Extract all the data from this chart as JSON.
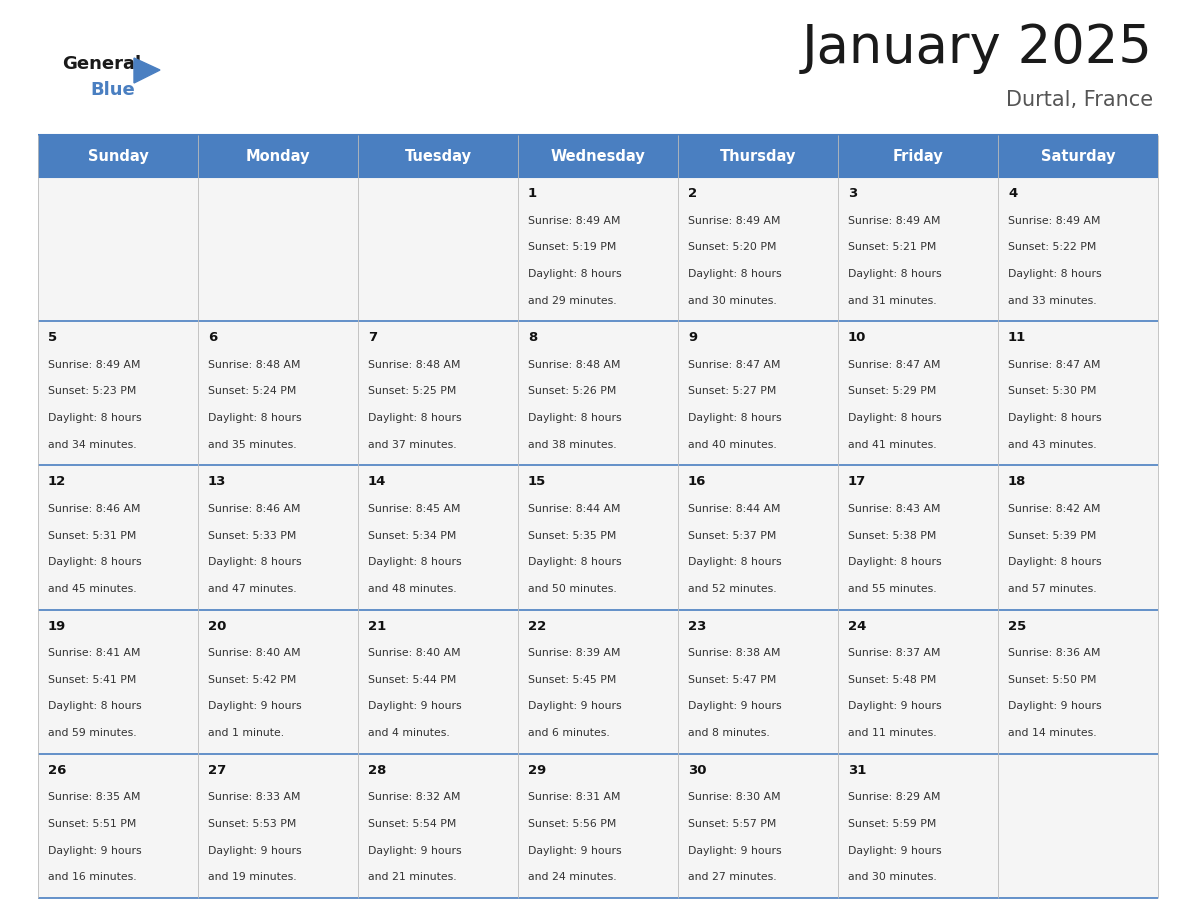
{
  "title": "January 2025",
  "subtitle": "Durtal, France",
  "days_of_week": [
    "Sunday",
    "Monday",
    "Tuesday",
    "Wednesday",
    "Thursday",
    "Friday",
    "Saturday"
  ],
  "header_bg": "#4a7fc1",
  "header_text": "#FFFFFF",
  "cell_bg": "#F5F5F5",
  "border_color": "#4a7fc1",
  "row_line_color": "#4a7fc1",
  "text_color": "#333333",
  "day_num_color": "#111111",
  "calendar": [
    [
      {
        "day": "",
        "sunrise": "",
        "sunset": "",
        "daylight": ""
      },
      {
        "day": "",
        "sunrise": "",
        "sunset": "",
        "daylight": ""
      },
      {
        "day": "",
        "sunrise": "",
        "sunset": "",
        "daylight": ""
      },
      {
        "day": "1",
        "sunrise": "8:49 AM",
        "sunset": "5:19 PM",
        "daylight": "8 hours\nand 29 minutes."
      },
      {
        "day": "2",
        "sunrise": "8:49 AM",
        "sunset": "5:20 PM",
        "daylight": "8 hours\nand 30 minutes."
      },
      {
        "day": "3",
        "sunrise": "8:49 AM",
        "sunset": "5:21 PM",
        "daylight": "8 hours\nand 31 minutes."
      },
      {
        "day": "4",
        "sunrise": "8:49 AM",
        "sunset": "5:22 PM",
        "daylight": "8 hours\nand 33 minutes."
      }
    ],
    [
      {
        "day": "5",
        "sunrise": "8:49 AM",
        "sunset": "5:23 PM",
        "daylight": "8 hours\nand 34 minutes."
      },
      {
        "day": "6",
        "sunrise": "8:48 AM",
        "sunset": "5:24 PM",
        "daylight": "8 hours\nand 35 minutes."
      },
      {
        "day": "7",
        "sunrise": "8:48 AM",
        "sunset": "5:25 PM",
        "daylight": "8 hours\nand 37 minutes."
      },
      {
        "day": "8",
        "sunrise": "8:48 AM",
        "sunset": "5:26 PM",
        "daylight": "8 hours\nand 38 minutes."
      },
      {
        "day": "9",
        "sunrise": "8:47 AM",
        "sunset": "5:27 PM",
        "daylight": "8 hours\nand 40 minutes."
      },
      {
        "day": "10",
        "sunrise": "8:47 AM",
        "sunset": "5:29 PM",
        "daylight": "8 hours\nand 41 minutes."
      },
      {
        "day": "11",
        "sunrise": "8:47 AM",
        "sunset": "5:30 PM",
        "daylight": "8 hours\nand 43 minutes."
      }
    ],
    [
      {
        "day": "12",
        "sunrise": "8:46 AM",
        "sunset": "5:31 PM",
        "daylight": "8 hours\nand 45 minutes."
      },
      {
        "day": "13",
        "sunrise": "8:46 AM",
        "sunset": "5:33 PM",
        "daylight": "8 hours\nand 47 minutes."
      },
      {
        "day": "14",
        "sunrise": "8:45 AM",
        "sunset": "5:34 PM",
        "daylight": "8 hours\nand 48 minutes."
      },
      {
        "day": "15",
        "sunrise": "8:44 AM",
        "sunset": "5:35 PM",
        "daylight": "8 hours\nand 50 minutes."
      },
      {
        "day": "16",
        "sunrise": "8:44 AM",
        "sunset": "5:37 PM",
        "daylight": "8 hours\nand 52 minutes."
      },
      {
        "day": "17",
        "sunrise": "8:43 AM",
        "sunset": "5:38 PM",
        "daylight": "8 hours\nand 55 minutes."
      },
      {
        "day": "18",
        "sunrise": "8:42 AM",
        "sunset": "5:39 PM",
        "daylight": "8 hours\nand 57 minutes."
      }
    ],
    [
      {
        "day": "19",
        "sunrise": "8:41 AM",
        "sunset": "5:41 PM",
        "daylight": "8 hours\nand 59 minutes."
      },
      {
        "day": "20",
        "sunrise": "8:40 AM",
        "sunset": "5:42 PM",
        "daylight": "9 hours\nand 1 minute."
      },
      {
        "day": "21",
        "sunrise": "8:40 AM",
        "sunset": "5:44 PM",
        "daylight": "9 hours\nand 4 minutes."
      },
      {
        "day": "22",
        "sunrise": "8:39 AM",
        "sunset": "5:45 PM",
        "daylight": "9 hours\nand 6 minutes."
      },
      {
        "day": "23",
        "sunrise": "8:38 AM",
        "sunset": "5:47 PM",
        "daylight": "9 hours\nand 8 minutes."
      },
      {
        "day": "24",
        "sunrise": "8:37 AM",
        "sunset": "5:48 PM",
        "daylight": "9 hours\nand 11 minutes."
      },
      {
        "day": "25",
        "sunrise": "8:36 AM",
        "sunset": "5:50 PM",
        "daylight": "9 hours\nand 14 minutes."
      }
    ],
    [
      {
        "day": "26",
        "sunrise": "8:35 AM",
        "sunset": "5:51 PM",
        "daylight": "9 hours\nand 16 minutes."
      },
      {
        "day": "27",
        "sunrise": "8:33 AM",
        "sunset": "5:53 PM",
        "daylight": "9 hours\nand 19 minutes."
      },
      {
        "day": "28",
        "sunrise": "8:32 AM",
        "sunset": "5:54 PM",
        "daylight": "9 hours\nand 21 minutes."
      },
      {
        "day": "29",
        "sunrise": "8:31 AM",
        "sunset": "5:56 PM",
        "daylight": "9 hours\nand 24 minutes."
      },
      {
        "day": "30",
        "sunrise": "8:30 AM",
        "sunset": "5:57 PM",
        "daylight": "9 hours\nand 27 minutes."
      },
      {
        "day": "31",
        "sunrise": "8:29 AM",
        "sunset": "5:59 PM",
        "daylight": "9 hours\nand 30 minutes."
      },
      {
        "day": "",
        "sunrise": "",
        "sunset": "",
        "daylight": ""
      }
    ]
  ],
  "fig_width": 11.88,
  "fig_height": 9.18,
  "dpi": 100
}
